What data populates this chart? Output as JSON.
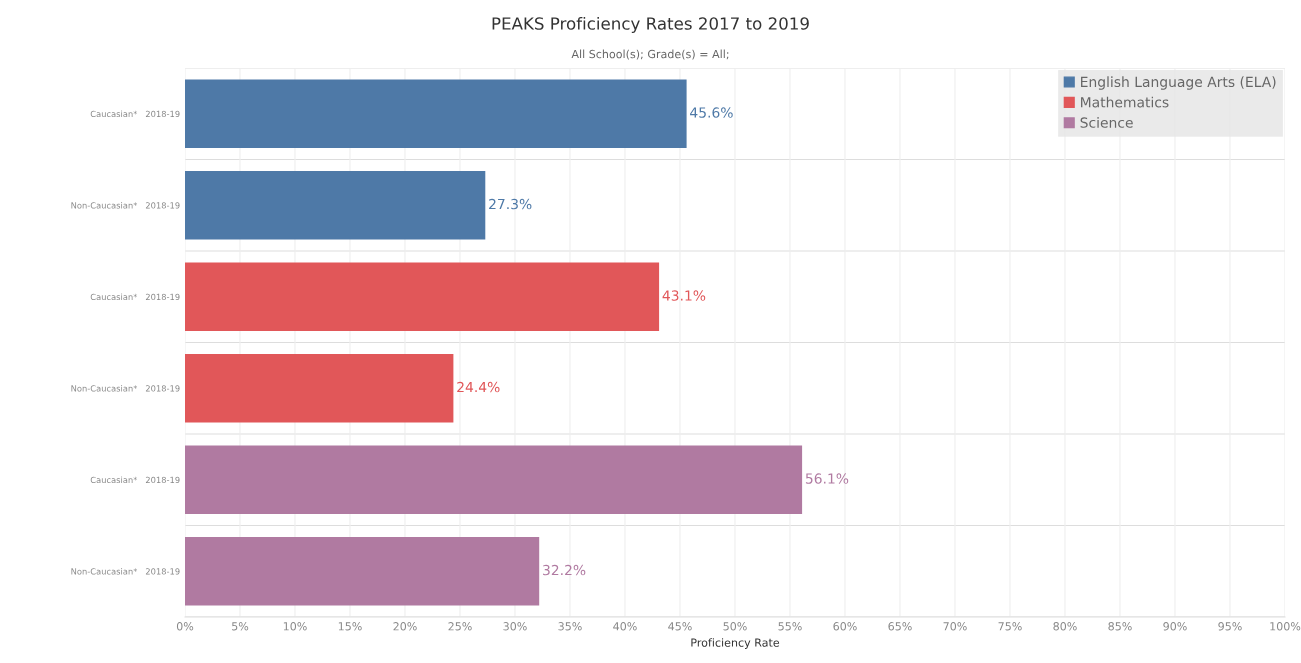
{
  "chart_data": {
    "type": "bar",
    "orientation": "horizontal",
    "title": "PEAKS Proficiency Rates 2017 to 2019",
    "subtitle": "All School(s); Grade(s) = All;",
    "xlabel": "Proficiency Rate",
    "categories": [
      "Caucasian*   2018-19",
      "Non-Caucasian*   2018-19",
      "Caucasian*   2018-19",
      "Non-Caucasian*   2018-19",
      "Caucasian*   2018-19",
      "Non-Caucasian*   2018-19"
    ],
    "series": [
      {
        "name": "English Language Arts (ELA)",
        "color": "#4e79a7",
        "values": [
          45.6,
          27.3,
          null,
          null,
          null,
          null
        ],
        "value_labels": [
          "45.6%",
          "27.3%",
          null,
          null,
          null,
          null
        ]
      },
      {
        "name": "Mathematics",
        "color": "#e15759",
        "values": [
          null,
          null,
          43.1,
          24.4,
          null,
          null
        ],
        "value_labels": [
          null,
          null,
          "43.1%",
          "24.4%",
          null,
          null
        ]
      },
      {
        "name": "Science",
        "color": "#b07aa1",
        "values": [
          null,
          null,
          null,
          null,
          56.1,
          32.2
        ],
        "value_labels": [
          null,
          null,
          null,
          null,
          "56.1%",
          "32.2%"
        ]
      }
    ],
    "xlim": [
      0,
      100
    ],
    "xticks": [
      {
        "value": 0,
        "label": "0%"
      },
      {
        "value": 5,
        "label": "5%"
      },
      {
        "value": 10,
        "label": "10%"
      },
      {
        "value": 15,
        "label": "15%"
      },
      {
        "value": 20,
        "label": "20%"
      },
      {
        "value": 25,
        "label": "25%"
      },
      {
        "value": 30,
        "label": "30%"
      },
      {
        "value": 35,
        "label": "35%"
      },
      {
        "value": 40,
        "label": "40%"
      },
      {
        "value": 45,
        "label": "45%"
      },
      {
        "value": 50,
        "label": "50%"
      },
      {
        "value": 55,
        "label": "55%"
      },
      {
        "value": 60,
        "label": "60%"
      },
      {
        "value": 65,
        "label": "65%"
      },
      {
        "value": 70,
        "label": "70%"
      },
      {
        "value": 75,
        "label": "75%"
      },
      {
        "value": 80,
        "label": "80%"
      },
      {
        "value": 85,
        "label": "85%"
      },
      {
        "value": 90,
        "label": "90%"
      },
      {
        "value": 95,
        "label": "95%"
      },
      {
        "value": 100,
        "label": "100%"
      }
    ],
    "grid": "x",
    "legend": "top right"
  }
}
